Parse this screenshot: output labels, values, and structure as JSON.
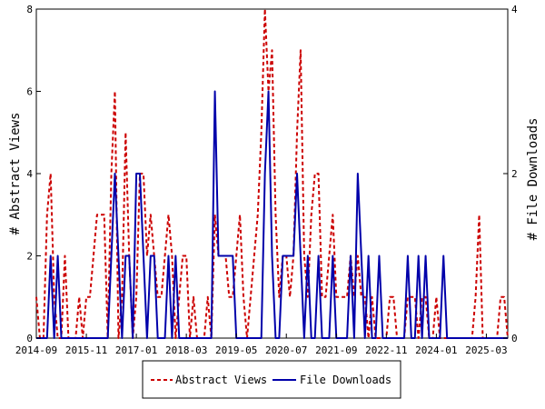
{
  "chart_data": {
    "type": "line",
    "x_start": "2014-09",
    "x_end": "2025-09",
    "x_tick_labels": [
      "2014-09",
      "2015-11",
      "2017-01",
      "2018-03",
      "2019-05",
      "2020-07",
      "2021-09",
      "2022-11",
      "2024-01",
      "2025-03"
    ],
    "y_left": {
      "label": "# Abstract Views",
      "range": [
        0,
        8
      ],
      "ticks": [
        "0",
        "2",
        "4",
        "6",
        "8"
      ]
    },
    "y_right": {
      "label": "# File Downloads",
      "range": [
        0,
        4
      ],
      "ticks": [
        "0",
        "2",
        "4"
      ]
    },
    "grid": false,
    "legend_position": "bottom-center",
    "series": [
      {
        "name": "Abstract Views",
        "axis": "left",
        "color": "#cc0000",
        "style": "dashed",
        "points": [
          [
            "2014-09",
            1
          ],
          [
            "2014-10",
            0
          ],
          [
            "2014-11",
            0
          ],
          [
            "2014-12",
            3
          ],
          [
            "2015-01",
            4
          ],
          [
            "2015-02",
            1
          ],
          [
            "2015-03",
            0
          ],
          [
            "2015-04",
            0
          ],
          [
            "2015-05",
            2
          ],
          [
            "2015-06",
            0
          ],
          [
            "2015-07",
            0
          ],
          [
            "2015-08",
            0
          ],
          [
            "2015-09",
            1
          ],
          [
            "2015-10",
            0
          ],
          [
            "2015-11",
            1
          ],
          [
            "2015-12",
            1
          ],
          [
            "2016-01",
            2
          ],
          [
            "2016-02",
            3
          ],
          [
            "2016-03",
            3
          ],
          [
            "2016-04",
            3
          ],
          [
            "2016-05",
            0
          ],
          [
            "2016-06",
            4
          ],
          [
            "2016-07",
            6
          ],
          [
            "2016-08",
            0
          ],
          [
            "2016-09",
            1
          ],
          [
            "2016-10",
            5
          ],
          [
            "2016-11",
            2
          ],
          [
            "2016-12",
            0
          ],
          [
            "2017-01",
            1
          ],
          [
            "2017-02",
            4
          ],
          [
            "2017-03",
            4
          ],
          [
            "2017-04",
            2
          ],
          [
            "2017-05",
            3
          ],
          [
            "2017-06",
            2
          ],
          [
            "2017-07",
            1
          ],
          [
            "2017-08",
            1
          ],
          [
            "2017-09",
            2
          ],
          [
            "2017-10",
            3
          ],
          [
            "2017-11",
            2
          ],
          [
            "2017-12",
            0
          ],
          [
            "2018-01",
            1
          ],
          [
            "2018-02",
            2
          ],
          [
            "2018-03",
            2
          ],
          [
            "2018-04",
            0
          ],
          [
            "2018-05",
            1
          ],
          [
            "2018-06",
            0
          ],
          [
            "2018-07",
            0
          ],
          [
            "2018-08",
            0
          ],
          [
            "2018-09",
            1
          ],
          [
            "2018-10",
            0
          ],
          [
            "2018-11",
            3
          ],
          [
            "2018-12",
            2
          ],
          [
            "2019-01",
            2
          ],
          [
            "2019-02",
            2
          ],
          [
            "2019-03",
            1
          ],
          [
            "2019-04",
            1
          ],
          [
            "2019-05",
            2
          ],
          [
            "2019-06",
            3
          ],
          [
            "2019-07",
            1
          ],
          [
            "2019-08",
            0
          ],
          [
            "2019-09",
            1
          ],
          [
            "2019-10",
            2
          ],
          [
            "2019-11",
            3
          ],
          [
            "2019-12",
            5
          ],
          [
            "2020-01",
            8
          ],
          [
            "2020-02",
            6
          ],
          [
            "2020-03",
            7
          ],
          [
            "2020-04",
            3
          ],
          [
            "2020-05",
            1
          ],
          [
            "2020-06",
            2
          ],
          [
            "2020-07",
            2
          ],
          [
            "2020-08",
            1
          ],
          [
            "2020-09",
            2
          ],
          [
            "2020-10",
            5
          ],
          [
            "2020-11",
            7
          ],
          [
            "2020-12",
            2
          ],
          [
            "2021-01",
            1
          ],
          [
            "2021-02",
            3
          ],
          [
            "2021-03",
            4
          ],
          [
            "2021-04",
            4
          ],
          [
            "2021-05",
            1
          ],
          [
            "2021-06",
            1
          ],
          [
            "2021-07",
            2
          ],
          [
            "2021-08",
            3
          ],
          [
            "2021-09",
            1
          ],
          [
            "2021-10",
            1
          ],
          [
            "2021-11",
            1
          ],
          [
            "2021-12",
            1
          ],
          [
            "2022-01",
            2
          ],
          [
            "2022-02",
            1
          ],
          [
            "2022-03",
            2
          ],
          [
            "2022-04",
            1
          ],
          [
            "2022-05",
            1
          ],
          [
            "2022-06",
            0
          ],
          [
            "2022-07",
            1
          ],
          [
            "2022-08",
            0
          ],
          [
            "2022-09",
            0
          ],
          [
            "2022-10",
            0
          ],
          [
            "2022-11",
            0
          ],
          [
            "2022-12",
            1
          ],
          [
            "2023-01",
            1
          ],
          [
            "2023-02",
            0
          ],
          [
            "2023-03",
            0
          ],
          [
            "2023-04",
            0
          ],
          [
            "2023-05",
            1
          ],
          [
            "2023-06",
            1
          ],
          [
            "2023-07",
            1
          ],
          [
            "2023-08",
            0
          ],
          [
            "2023-09",
            1
          ],
          [
            "2023-10",
            1
          ],
          [
            "2023-11",
            0
          ],
          [
            "2023-12",
            0
          ],
          [
            "2024-01",
            1
          ],
          [
            "2024-02",
            0
          ],
          [
            "2024-03",
            0
          ],
          [
            "2024-04",
            0
          ],
          [
            "2024-05",
            0
          ],
          [
            "2024-06",
            0
          ],
          [
            "2024-07",
            0
          ],
          [
            "2024-08",
            0
          ],
          [
            "2024-09",
            0
          ],
          [
            "2024-10",
            0
          ],
          [
            "2024-11",
            0
          ],
          [
            "2024-12",
            1
          ],
          [
            "2025-01",
            3
          ],
          [
            "2025-02",
            0
          ],
          [
            "2025-03",
            0
          ],
          [
            "2025-04",
            0
          ],
          [
            "2025-05",
            0
          ],
          [
            "2025-06",
            0
          ],
          [
            "2025-07",
            1
          ],
          [
            "2025-08",
            1
          ],
          [
            "2025-09",
            0
          ]
        ]
      },
      {
        "name": "File Downloads",
        "axis": "right",
        "color": "#0000aa",
        "style": "solid",
        "points": [
          [
            "2014-09",
            0
          ],
          [
            "2014-10",
            0
          ],
          [
            "2014-11",
            0
          ],
          [
            "2014-12",
            0
          ],
          [
            "2015-01",
            1
          ],
          [
            "2015-02",
            0
          ],
          [
            "2015-03",
            1
          ],
          [
            "2015-04",
            0
          ],
          [
            "2015-05",
            0
          ],
          [
            "2015-06",
            0
          ],
          [
            "2015-07",
            0
          ],
          [
            "2015-08",
            0
          ],
          [
            "2015-09",
            0
          ],
          [
            "2015-10",
            0
          ],
          [
            "2015-11",
            0
          ],
          [
            "2015-12",
            0
          ],
          [
            "2016-01",
            0
          ],
          [
            "2016-02",
            0
          ],
          [
            "2016-03",
            0
          ],
          [
            "2016-04",
            0
          ],
          [
            "2016-05",
            0
          ],
          [
            "2016-06",
            1
          ],
          [
            "2016-07",
            2
          ],
          [
            "2016-08",
            1
          ],
          [
            "2016-09",
            0
          ],
          [
            "2016-10",
            1
          ],
          [
            "2016-11",
            1
          ],
          [
            "2016-12",
            0
          ],
          [
            "2017-01",
            2
          ],
          [
            "2017-02",
            2
          ],
          [
            "2017-03",
            1
          ],
          [
            "2017-04",
            0
          ],
          [
            "2017-05",
            1
          ],
          [
            "2017-06",
            1
          ],
          [
            "2017-07",
            0
          ],
          [
            "2017-08",
            0
          ],
          [
            "2017-09",
            0
          ],
          [
            "2017-10",
            1
          ],
          [
            "2017-11",
            0
          ],
          [
            "2017-12",
            1
          ],
          [
            "2018-01",
            0
          ],
          [
            "2018-02",
            0
          ],
          [
            "2018-03",
            0
          ],
          [
            "2018-04",
            0
          ],
          [
            "2018-05",
            0
          ],
          [
            "2018-06",
            0
          ],
          [
            "2018-07",
            0
          ],
          [
            "2018-08",
            0
          ],
          [
            "2018-09",
            0
          ],
          [
            "2018-10",
            0
          ],
          [
            "2018-11",
            3
          ],
          [
            "2018-12",
            1
          ],
          [
            "2019-01",
            1
          ],
          [
            "2019-02",
            1
          ],
          [
            "2019-03",
            1
          ],
          [
            "2019-04",
            1
          ],
          [
            "2019-05",
            0
          ],
          [
            "2019-06",
            0
          ],
          [
            "2019-07",
            0
          ],
          [
            "2019-08",
            0
          ],
          [
            "2019-09",
            0
          ],
          [
            "2019-10",
            0
          ],
          [
            "2019-11",
            0
          ],
          [
            "2019-12",
            0
          ],
          [
            "2020-01",
            2
          ],
          [
            "2020-02",
            3
          ],
          [
            "2020-03",
            1
          ],
          [
            "2020-04",
            0
          ],
          [
            "2020-05",
            0
          ],
          [
            "2020-06",
            1
          ],
          [
            "2020-07",
            1
          ],
          [
            "2020-08",
            1
          ],
          [
            "2020-09",
            1
          ],
          [
            "2020-10",
            2
          ],
          [
            "2020-11",
            1
          ],
          [
            "2020-12",
            0
          ],
          [
            "2021-01",
            1
          ],
          [
            "2021-02",
            0
          ],
          [
            "2021-03",
            0
          ],
          [
            "2021-04",
            1
          ],
          [
            "2021-05",
            0
          ],
          [
            "2021-06",
            0
          ],
          [
            "2021-07",
            0
          ],
          [
            "2021-08",
            1
          ],
          [
            "2021-09",
            0
          ],
          [
            "2021-10",
            0
          ],
          [
            "2021-11",
            0
          ],
          [
            "2021-12",
            0
          ],
          [
            "2022-01",
            1
          ],
          [
            "2022-02",
            0
          ],
          [
            "2022-03",
            2
          ],
          [
            "2022-04",
            1
          ],
          [
            "2022-05",
            0
          ],
          [
            "2022-06",
            1
          ],
          [
            "2022-07",
            0
          ],
          [
            "2022-08",
            0
          ],
          [
            "2022-09",
            1
          ],
          [
            "2022-10",
            0
          ],
          [
            "2022-11",
            0
          ],
          [
            "2022-12",
            0
          ],
          [
            "2023-01",
            0
          ],
          [
            "2023-02",
            0
          ],
          [
            "2023-03",
            0
          ],
          [
            "2023-04",
            0
          ],
          [
            "2023-05",
            1
          ],
          [
            "2023-06",
            0
          ],
          [
            "2023-07",
            0
          ],
          [
            "2023-08",
            1
          ],
          [
            "2023-09",
            0
          ],
          [
            "2023-10",
            1
          ],
          [
            "2023-11",
            0
          ],
          [
            "2023-12",
            0
          ],
          [
            "2024-01",
            0
          ],
          [
            "2024-02",
            0
          ],
          [
            "2024-03",
            1
          ],
          [
            "2024-04",
            0
          ],
          [
            "2024-05",
            0
          ],
          [
            "2024-06",
            0
          ],
          [
            "2024-07",
            0
          ],
          [
            "2024-08",
            0
          ],
          [
            "2024-09",
            0
          ],
          [
            "2024-10",
            0
          ],
          [
            "2024-11",
            0
          ],
          [
            "2024-12",
            0
          ],
          [
            "2025-01",
            0
          ],
          [
            "2025-02",
            0
          ],
          [
            "2025-03",
            0
          ],
          [
            "2025-04",
            0
          ],
          [
            "2025-05",
            0
          ],
          [
            "2025-06",
            0
          ],
          [
            "2025-07",
            0
          ],
          [
            "2025-08",
            0
          ],
          [
            "2025-09",
            0
          ]
        ]
      }
    ]
  }
}
